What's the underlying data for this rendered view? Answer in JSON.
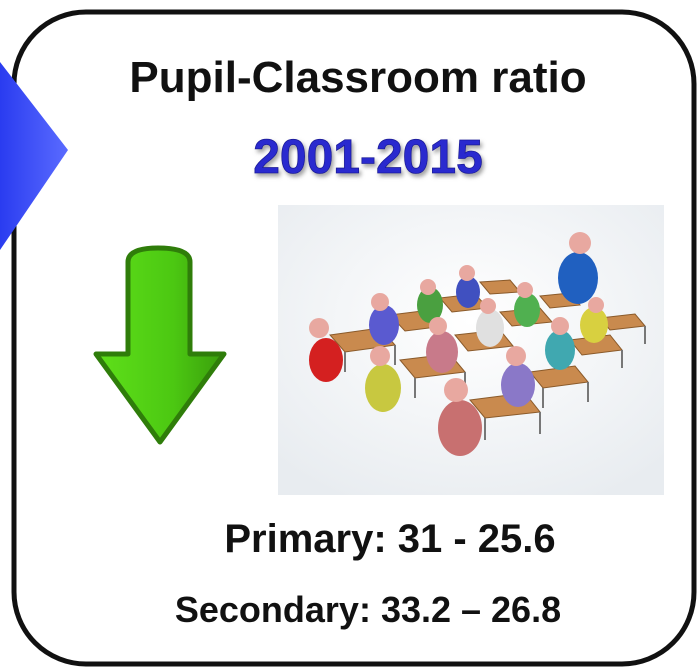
{
  "card": {
    "title": "Pupil-Classroom ratio",
    "period": "2001-2015",
    "stats": [
      "Primary: 31 - 25.6",
      "Secondary: 33.2 – 26.8"
    ]
  }
}
